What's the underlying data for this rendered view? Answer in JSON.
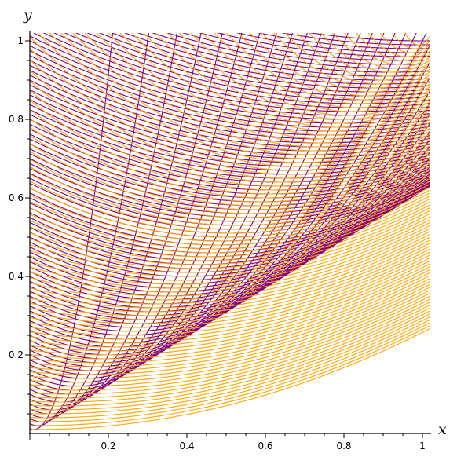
{
  "chart_data": {
    "type": "line",
    "title": "",
    "xlabel": "x",
    "ylabel": "y",
    "xlim": [
      0,
      1.02
    ],
    "ylim": [
      0,
      1.02
    ],
    "grid": false,
    "legend": "none",
    "x_ticks": [
      {
        "value": 0.2,
        "label": "0.2"
      },
      {
        "value": 0.4,
        "label": "0.4"
      },
      {
        "value": 0.6,
        "label": "0.6"
      },
      {
        "value": 0.8,
        "label": "0.8"
      },
      {
        "value": 1.0,
        "label": "1"
      }
    ],
    "y_ticks": [
      {
        "value": 0.2,
        "label": "0.2"
      },
      {
        "value": 0.4,
        "label": "0.4"
      },
      {
        "value": 0.6,
        "label": "0.6"
      },
      {
        "value": 0.8,
        "label": "0.8"
      },
      {
        "value": 1.0,
        "label": "1"
      }
    ],
    "series": [
      {
        "color": "#800080",
        "family": "parabolas y = t + (x - t)^2 / (4t)",
        "parameter_t": {
          "start": 0.01,
          "end": 1.0,
          "step": 0.01
        }
      },
      {
        "color": "#ffa500",
        "family": "parabolas y = t + (x - t)^2 / (4(1 - t))",
        "parameter_t": {
          "start": 0.01,
          "end": 0.99,
          "step": 0.01
        }
      }
    ]
  }
}
